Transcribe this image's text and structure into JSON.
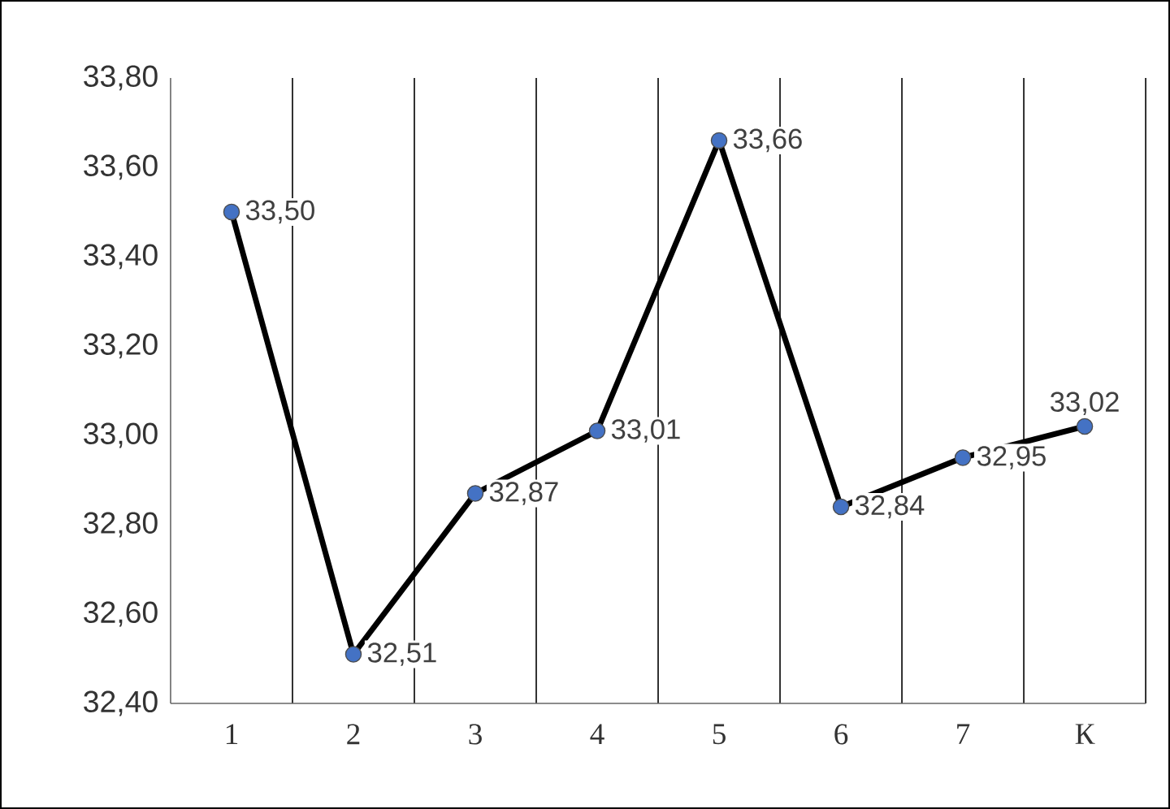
{
  "chart_data": {
    "type": "line",
    "categories": [
      "1",
      "2",
      "3",
      "4",
      "5",
      "6",
      "7",
      "К"
    ],
    "values": [
      33.5,
      32.51,
      32.87,
      33.01,
      33.66,
      32.84,
      32.95,
      33.02
    ],
    "value_labels": [
      "33,50",
      "32,51",
      "32,87",
      "33,01",
      "33,66",
      "32,84",
      "32,95",
      "33,02"
    ],
    "color": "#4472c4",
    "marker": "circle",
    "line_style": "solid",
    "grid": "x",
    "ylim": [
      32.4,
      33.8
    ],
    "yticks": [
      {
        "value": 32.4,
        "label": "32,40"
      },
      {
        "value": 32.6,
        "label": "32,60"
      },
      {
        "value": 32.8,
        "label": "32,80"
      },
      {
        "value": 33.0,
        "label": "33,00"
      },
      {
        "value": 33.2,
        "label": "33,20"
      },
      {
        "value": 33.4,
        "label": "33,40"
      },
      {
        "value": 33.6,
        "label": "33,60"
      },
      {
        "value": 33.8,
        "label": "33,80"
      }
    ]
  }
}
